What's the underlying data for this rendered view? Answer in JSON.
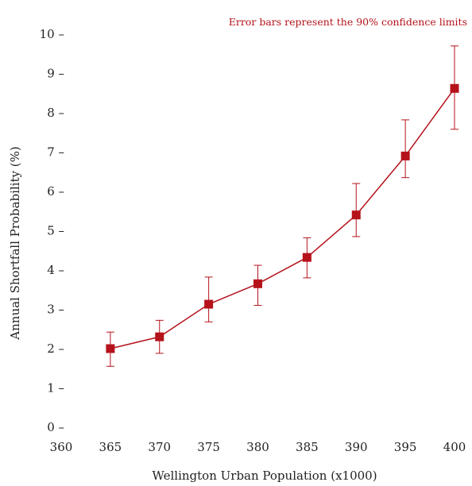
{
  "chart_data": {
    "type": "line",
    "annotation": "Error bars represent the 90% confidence limits",
    "xlabel": "Wellington Urban Population (x1000)",
    "ylabel": "Annual Shortfall Probability (%)",
    "xlim": [
      360,
      400
    ],
    "ylim": [
      0,
      10
    ],
    "x_ticks": [
      360,
      365,
      370,
      375,
      380,
      385,
      390,
      395,
      400
    ],
    "y_ticks": [
      0,
      1,
      2,
      3,
      4,
      5,
      6,
      7,
      8,
      9,
      10
    ],
    "y_tick_suffix": " –",
    "grid": false,
    "series": [
      {
        "color": "#b5121b",
        "x": [
          365,
          370,
          375,
          380,
          385,
          390,
          395,
          400
        ],
        "y": [
          2.0,
          2.3,
          3.13,
          3.65,
          4.32,
          5.4,
          6.9,
          8.62
        ],
        "err_low": [
          1.55,
          1.88,
          2.68,
          3.1,
          3.8,
          4.85,
          6.35,
          7.58
        ],
        "err_high": [
          2.42,
          2.72,
          3.82,
          4.12,
          4.82,
          6.2,
          7.82,
          9.7
        ]
      }
    ]
  }
}
